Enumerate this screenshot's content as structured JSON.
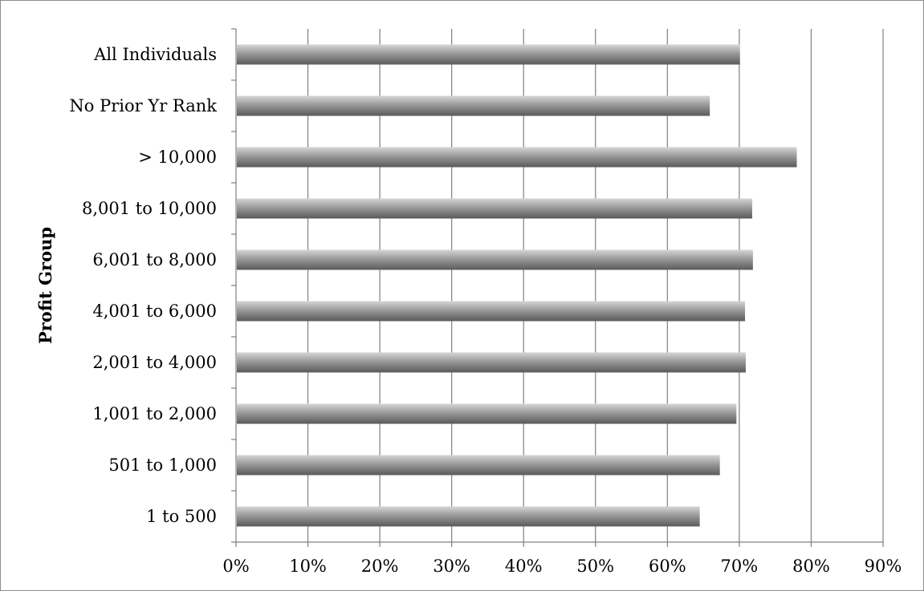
{
  "chart_data": {
    "type": "bar",
    "orientation": "horizontal",
    "title": "",
    "xlabel": "",
    "ylabel": "Profit Group",
    "categories": [
      "All Individuals",
      "No Prior Yr Rank",
      "> 10,000",
      "8,001 to 10,000",
      "6,001 to 8,000",
      "4,001 to 6,000",
      "2,001 to 4,000",
      "1,001 to 2,000",
      "501 to 1,000",
      "1 to 500"
    ],
    "values": [
      70.1,
      65.9,
      78.0,
      71.8,
      71.9,
      70.8,
      70.9,
      69.6,
      67.3,
      64.5
    ],
    "xlim": [
      0,
      90
    ],
    "x_ticks": [
      "0%",
      "10%",
      "20%",
      "30%",
      "40%",
      "50%",
      "60%",
      "70%",
      "80%",
      "90%"
    ],
    "grid": "vertical",
    "legend": "none",
    "colors": {
      "bar_light": "#d6d6d6",
      "bar_mid": "#9a9a9a",
      "bar_dark": "#5a5a5a",
      "grid": "#808080",
      "axis": "#808080"
    }
  }
}
